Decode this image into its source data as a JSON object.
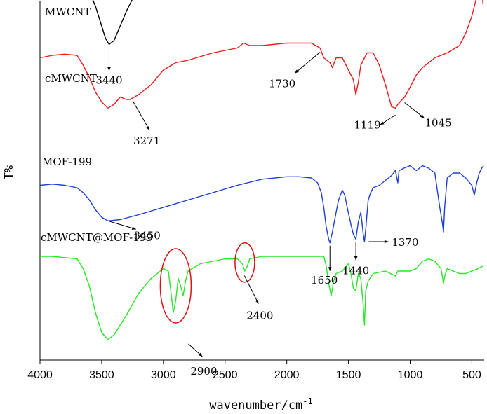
{
  "chart_data": {
    "type": "line",
    "xlabel": "wavenumber/cm",
    "xlabel_superscript": "-1",
    "ylabel": "T%",
    "x_reversed": true,
    "xlim": [
      4000,
      400
    ],
    "x_ticks": [
      4000,
      3500,
      3000,
      2500,
      2000,
      1500,
      1000,
      500
    ],
    "grid": false,
    "legend": "none",
    "series": [
      {
        "name": "MWCNT",
        "color": "#000000",
        "points": [
          [
            4000,
            88
          ],
          [
            3900,
            87
          ],
          [
            3800,
            86
          ],
          [
            3700,
            85
          ],
          [
            3650,
            83
          ],
          [
            3600,
            80
          ],
          [
            3550,
            74
          ],
          [
            3500,
            66
          ],
          [
            3470,
            61
          ],
          [
            3440,
            58.5
          ],
          [
            3400,
            60
          ],
          [
            3350,
            66
          ],
          [
            3300,
            72
          ],
          [
            3250,
            77
          ],
          [
            3200,
            80
          ],
          [
            3150,
            81
          ],
          [
            3100,
            82
          ],
          [
            3000,
            83
          ],
          [
            2800,
            84
          ],
          [
            2500,
            86
          ],
          [
            2350,
            88
          ],
          [
            2300,
            87
          ],
          [
            2000,
            86
          ],
          [
            1800,
            85
          ],
          [
            1700,
            82
          ],
          [
            1650,
            80
          ],
          [
            1630,
            77
          ],
          [
            1600,
            79
          ],
          [
            1550,
            82
          ],
          [
            1500,
            83
          ],
          [
            1460,
            80
          ],
          [
            1430,
            78
          ],
          [
            1400,
            81
          ],
          [
            1300,
            82
          ],
          [
            1200,
            80
          ],
          [
            1119,
            79
          ],
          [
            1100,
            81
          ],
          [
            1000,
            83
          ],
          [
            900,
            87
          ],
          [
            800,
            86
          ],
          [
            700,
            84
          ],
          [
            600,
            80
          ],
          [
            500,
            77
          ],
          [
            450,
            80
          ],
          [
            410,
            83
          ]
        ]
      },
      {
        "name": "cMWCNT",
        "color": "#ee1c1c",
        "points": [
          [
            4000,
            53
          ],
          [
            3900,
            54
          ],
          [
            3800,
            54.5
          ],
          [
            3700,
            54
          ],
          [
            3650,
            50
          ],
          [
            3600,
            45
          ],
          [
            3550,
            39
          ],
          [
            3500,
            35
          ],
          [
            3450,
            32.5
          ],
          [
            3400,
            34
          ],
          [
            3350,
            37
          ],
          [
            3300,
            36
          ],
          [
            3271,
            36
          ],
          [
            3200,
            38
          ],
          [
            3150,
            40
          ],
          [
            3100,
            42
          ],
          [
            3000,
            48
          ],
          [
            2900,
            51
          ],
          [
            2800,
            52
          ],
          [
            2600,
            55
          ],
          [
            2400,
            57
          ],
          [
            2350,
            59
          ],
          [
            2300,
            58
          ],
          [
            2200,
            58
          ],
          [
            2000,
            59
          ],
          [
            1800,
            59
          ],
          [
            1730,
            57
          ],
          [
            1700,
            53
          ],
          [
            1650,
            51
          ],
          [
            1630,
            49
          ],
          [
            1600,
            53
          ],
          [
            1550,
            53
          ],
          [
            1500,
            48
          ],
          [
            1460,
            44
          ],
          [
            1440,
            38
          ],
          [
            1420,
            43
          ],
          [
            1400,
            50
          ],
          [
            1350,
            55
          ],
          [
            1300,
            55
          ],
          [
            1250,
            50
          ],
          [
            1200,
            42
          ],
          [
            1150,
            33
          ],
          [
            1119,
            32.5
          ],
          [
            1100,
            34
          ],
          [
            1045,
            37
          ],
          [
            1000,
            41
          ],
          [
            950,
            46
          ],
          [
            900,
            49
          ],
          [
            800,
            53
          ],
          [
            700,
            55
          ],
          [
            600,
            58
          ],
          [
            550,
            63
          ],
          [
            500,
            70
          ],
          [
            470,
            76
          ],
          [
            440,
            83
          ],
          [
            420,
            85
          ],
          [
            410,
            75
          ]
        ]
      },
      {
        "name": "MOF-199",
        "color": "#1f3fd6",
        "points": [
          [
            4000,
            1
          ],
          [
            3900,
            1.5
          ],
          [
            3800,
            1
          ],
          [
            3700,
            0
          ],
          [
            3650,
            -2
          ],
          [
            3600,
            -5
          ],
          [
            3550,
            -9
          ],
          [
            3500,
            -12
          ],
          [
            3450,
            -13.5
          ],
          [
            3350,
            -13
          ],
          [
            3200,
            -11
          ],
          [
            3000,
            -8
          ],
          [
            2800,
            -5
          ],
          [
            2600,
            -2
          ],
          [
            2400,
            1
          ],
          [
            2200,
            3.5
          ],
          [
            2000,
            4.5
          ],
          [
            1900,
            4.5
          ],
          [
            1800,
            4
          ],
          [
            1750,
            2
          ],
          [
            1720,
            -2
          ],
          [
            1700,
            -8
          ],
          [
            1680,
            -16
          ],
          [
            1660,
            -21
          ],
          [
            1650,
            -22.5
          ],
          [
            1630,
            -18
          ],
          [
            1600,
            -10
          ],
          [
            1580,
            -5
          ],
          [
            1550,
            -1
          ],
          [
            1530,
            -3
          ],
          [
            1510,
            -8
          ],
          [
            1480,
            -15
          ],
          [
            1460,
            -19
          ],
          [
            1440,
            -21
          ],
          [
            1420,
            -14
          ],
          [
            1400,
            -10
          ],
          [
            1380,
            -19
          ],
          [
            1370,
            -22
          ],
          [
            1360,
            -17
          ],
          [
            1340,
            -5
          ],
          [
            1320,
            -2
          ],
          [
            1300,
            0
          ],
          [
            1250,
            1
          ],
          [
            1200,
            3
          ],
          [
            1150,
            5
          ],
          [
            1120,
            7
          ],
          [
            1100,
            2
          ],
          [
            1090,
            7
          ],
          [
            1050,
            8
          ],
          [
            1000,
            9
          ],
          [
            950,
            7
          ],
          [
            900,
            9
          ],
          [
            850,
            8
          ],
          [
            800,
            6
          ],
          [
            760,
            -8
          ],
          [
            740,
            -14
          ],
          [
            730,
            -18
          ],
          [
            720,
            -8
          ],
          [
            700,
            4
          ],
          [
            650,
            6
          ],
          [
            600,
            6
          ],
          [
            550,
            4
          ],
          [
            500,
            1
          ],
          [
            480,
            -3
          ],
          [
            460,
            2
          ],
          [
            440,
            6
          ],
          [
            420,
            8
          ],
          [
            405,
            9
          ]
        ]
      },
      {
        "name": "cMWCNT@MOF-199",
        "color": "#28e628",
        "points": [
          [
            4000,
            -28
          ],
          [
            3900,
            -28
          ],
          [
            3800,
            -28.5
          ],
          [
            3700,
            -29
          ],
          [
            3650,
            -33
          ],
          [
            3600,
            -40
          ],
          [
            3550,
            -51
          ],
          [
            3500,
            -59
          ],
          [
            3450,
            -62
          ],
          [
            3400,
            -60
          ],
          [
            3300,
            -52
          ],
          [
            3200,
            -43
          ],
          [
            3100,
            -37
          ],
          [
            3000,
            -33
          ],
          [
            2960,
            -34
          ],
          [
            2940,
            -42
          ],
          [
            2920,
            -51
          ],
          [
            2900,
            -46
          ],
          [
            2880,
            -37
          ],
          [
            2860,
            -40
          ],
          [
            2840,
            -44
          ],
          [
            2820,
            -38
          ],
          [
            2800,
            -34
          ],
          [
            2700,
            -31
          ],
          [
            2600,
            -30
          ],
          [
            2500,
            -29
          ],
          [
            2400,
            -29
          ],
          [
            2360,
            -31
          ],
          [
            2340,
            -34
          ],
          [
            2320,
            -32
          ],
          [
            2300,
            -29
          ],
          [
            2200,
            -28
          ],
          [
            2000,
            -28
          ],
          [
            1800,
            -28
          ],
          [
            1700,
            -28
          ],
          [
            1680,
            -32
          ],
          [
            1660,
            -39
          ],
          [
            1640,
            -44
          ],
          [
            1620,
            -38
          ],
          [
            1600,
            -35
          ],
          [
            1550,
            -34
          ],
          [
            1500,
            -31
          ],
          [
            1480,
            -35
          ],
          [
            1460,
            -41
          ],
          [
            1440,
            -42
          ],
          [
            1420,
            -35
          ],
          [
            1400,
            -37
          ],
          [
            1380,
            -48
          ],
          [
            1370,
            -56
          ],
          [
            1360,
            -42
          ],
          [
            1340,
            -38
          ],
          [
            1300,
            -35
          ],
          [
            1200,
            -34
          ],
          [
            1119,
            -36
          ],
          [
            1100,
            -34
          ],
          [
            1000,
            -34
          ],
          [
            950,
            -33
          ],
          [
            900,
            -30
          ],
          [
            850,
            -29
          ],
          [
            800,
            -30
          ],
          [
            750,
            -33
          ],
          [
            730,
            -39
          ],
          [
            720,
            -36
          ],
          [
            700,
            -33
          ],
          [
            650,
            -34
          ],
          [
            600,
            -35
          ],
          [
            550,
            -35
          ],
          [
            500,
            -34
          ],
          [
            450,
            -33
          ],
          [
            410,
            -32
          ]
        ]
      }
    ],
    "series_labels": [
      {
        "text": "MWCNT",
        "series": 0
      },
      {
        "text": "cMWCNT",
        "series": 1
      },
      {
        "text": "MOF-199",
        "series": 2
      },
      {
        "text": "cMWCNT@MOF-199",
        "series": 3
      }
    ],
    "annotations": [
      {
        "text": "3440",
        "x": 3440,
        "series": 0
      },
      {
        "text": "3271",
        "x": 3271,
        "series": 1
      },
      {
        "text": "1730",
        "x": 1730,
        "series": 1
      },
      {
        "text": "1119",
        "x": 1119,
        "series": 1
      },
      {
        "text": "1045",
        "x": 1045,
        "series": 1
      },
      {
        "text": "3450",
        "x": 3450,
        "series": 2
      },
      {
        "text": "1650",
        "x": 1650,
        "series": 2
      },
      {
        "text": "1440",
        "x": 1440,
        "series": 2
      },
      {
        "text": "1370",
        "x": 1370,
        "series": 2
      },
      {
        "text": "2900",
        "x": 2900,
        "series": 3
      },
      {
        "text": "2400",
        "x": 2400,
        "series": 3
      }
    ],
    "highlight_ellipses": [
      {
        "center_x": 2900,
        "series": 3,
        "color": "#dd1111"
      },
      {
        "center_x": 2340,
        "series": 3,
        "color": "#dd1111"
      }
    ]
  }
}
